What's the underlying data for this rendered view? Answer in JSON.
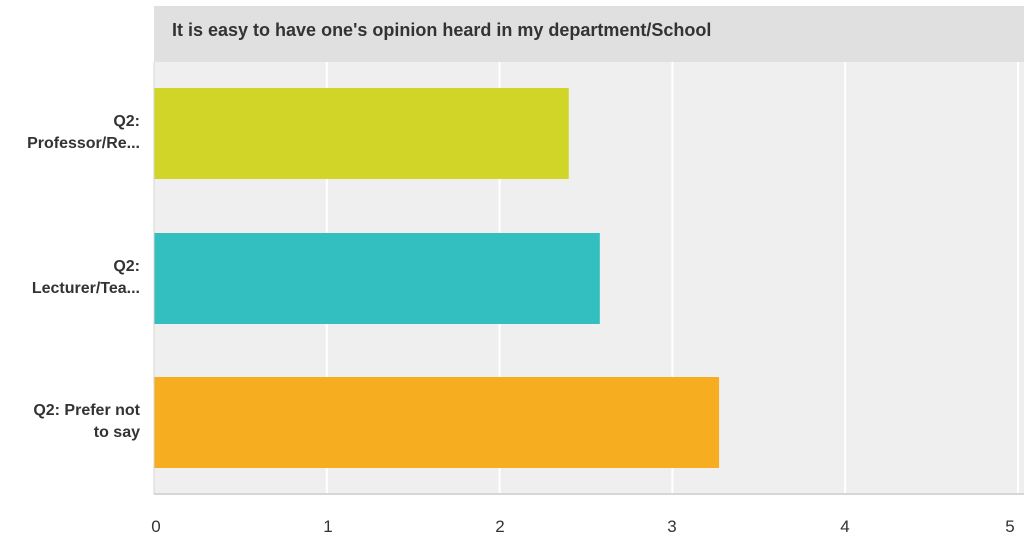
{
  "chart_data": {
    "type": "bar",
    "orientation": "horizontal",
    "title": "It is easy to have one's opinion heard in my department/School",
    "categories": [
      "Q2: Professor/Re...",
      "Q2: Lecturer/Tea...",
      "Q2: Prefer not to say"
    ],
    "category_lines": [
      [
        "Q2:",
        "Professor/Re..."
      ],
      [
        "Q2:",
        "Lecturer/Tea..."
      ],
      [
        "Q2: Prefer not",
        "to say"
      ]
    ],
    "values": [
      2.4,
      2.58,
      3.27
    ],
    "bar_colors": [
      "#d0d527",
      "#33bfbf",
      "#f6ae20"
    ],
    "xlim": [
      0,
      5
    ],
    "xticks": [
      "0",
      "1",
      "2",
      "3",
      "4",
      "5"
    ],
    "grid": true,
    "xlabel": "",
    "ylabel": ""
  },
  "colors": {
    "plot_background": "#efefef",
    "title_band": "#e0e0e0",
    "gridline": "#ffffff",
    "axis": "#d6d6d6",
    "text": "#333333"
  }
}
